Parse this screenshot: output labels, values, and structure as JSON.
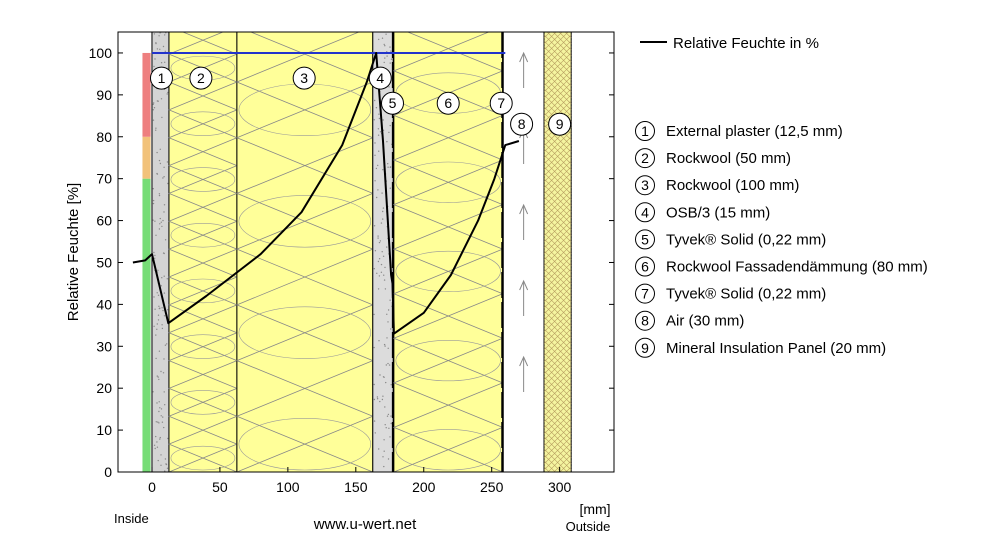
{
  "chart_data": {
    "type": "line",
    "ylabel": "Relative Feuchte [%]",
    "x_unit": "[mm]",
    "inside_label": "Inside",
    "outside_label": "Outside",
    "source": "www.u-wert.net",
    "xlim": [
      -25,
      340
    ],
    "ylim": [
      0,
      105
    ],
    "x_ticks": [
      0,
      50,
      100,
      150,
      200,
      250,
      300
    ],
    "y_ticks": [
      0,
      10,
      20,
      30,
      40,
      50,
      60,
      70,
      80,
      90,
      100
    ],
    "grid": false,
    "legend_position": "right",
    "series": [
      {
        "name": "Relative Feuchte in %",
        "color": "#000000",
        "points": [
          [
            -14,
            50
          ],
          [
            -5,
            50.5
          ],
          [
            0,
            52
          ],
          [
            12,
            35.5
          ],
          [
            40,
            42
          ],
          [
            80,
            52
          ],
          [
            110,
            62
          ],
          [
            140,
            78
          ],
          [
            158,
            93
          ],
          [
            165,
            100
          ],
          [
            170,
            79
          ],
          [
            176,
            47
          ],
          [
            177,
            45
          ],
          [
            178,
            33
          ],
          [
            200,
            38
          ],
          [
            220,
            47
          ],
          [
            240,
            60
          ],
          [
            252,
            70
          ],
          [
            260,
            78
          ],
          [
            270,
            79
          ]
        ]
      }
    ],
    "saturation_line": {
      "y": 100,
      "x_range": [
        0,
        260
      ],
      "color": "#2233cc"
    },
    "humidity_band": {
      "x_range": [
        -7,
        -1
      ],
      "zones": [
        {
          "from": 0,
          "to": 70,
          "color": "#77dd77"
        },
        {
          "from": 70,
          "to": 80,
          "color": "#f2c27a"
        },
        {
          "from": 80,
          "to": 100,
          "color": "#ee7f7f"
        }
      ]
    },
    "layers": [
      {
        "id": "1",
        "name": "External plaster (12,5 mm)",
        "x_range": [
          0,
          12.5
        ],
        "kind": "plaster",
        "marker": {
          "x": 7,
          "y": 94
        }
      },
      {
        "id": "2",
        "name": "Rockwool (50 mm)",
        "x_range": [
          12.5,
          62.5
        ],
        "kind": "wool",
        "marker": {
          "x": 36,
          "y": 94
        }
      },
      {
        "id": "3",
        "name": "Rockwool (100 mm)",
        "x_range": [
          62.5,
          162.5
        ],
        "kind": "wool",
        "marker": {
          "x": 112,
          "y": 94
        }
      },
      {
        "id": "4",
        "name": "OSB/3 (15 mm)",
        "x_range": [
          162.5,
          177.5
        ],
        "kind": "osb",
        "marker": {
          "x": 168,
          "y": 94
        }
      },
      {
        "id": "5",
        "name": "Tyvek® Solid (0,22 mm)",
        "x_range": [
          177.5,
          178
        ],
        "kind": "membrane",
        "marker": {
          "x": 177,
          "y": 88
        }
      },
      {
        "id": "6",
        "name": "Rockwool Fassadendämmung (80 mm)",
        "x_range": [
          178,
          258
        ],
        "kind": "wool",
        "marker": {
          "x": 218,
          "y": 88
        }
      },
      {
        "id": "7",
        "name": "Tyvek® Solid (0,22 mm)",
        "x_range": [
          258,
          258.5
        ],
        "kind": "membrane",
        "marker": {
          "x": 257,
          "y": 88
        }
      },
      {
        "id": "8",
        "name": "Air (30 mm)",
        "x_range": [
          258.5,
          288.5
        ],
        "kind": "air",
        "marker": {
          "x": 272,
          "y": 83
        }
      },
      {
        "id": "9",
        "name": "Mineral Insulation Panel (20 mm)",
        "x_range": [
          288.5,
          308.5
        ],
        "kind": "panel",
        "marker": {
          "x": 300,
          "y": 83
        }
      }
    ],
    "colors": {
      "wool": "#ffff99",
      "plaster": "#d4d4d4",
      "osb": "#dcdcdc",
      "panel": "#f5f5a0",
      "air": "#ffffff"
    }
  }
}
